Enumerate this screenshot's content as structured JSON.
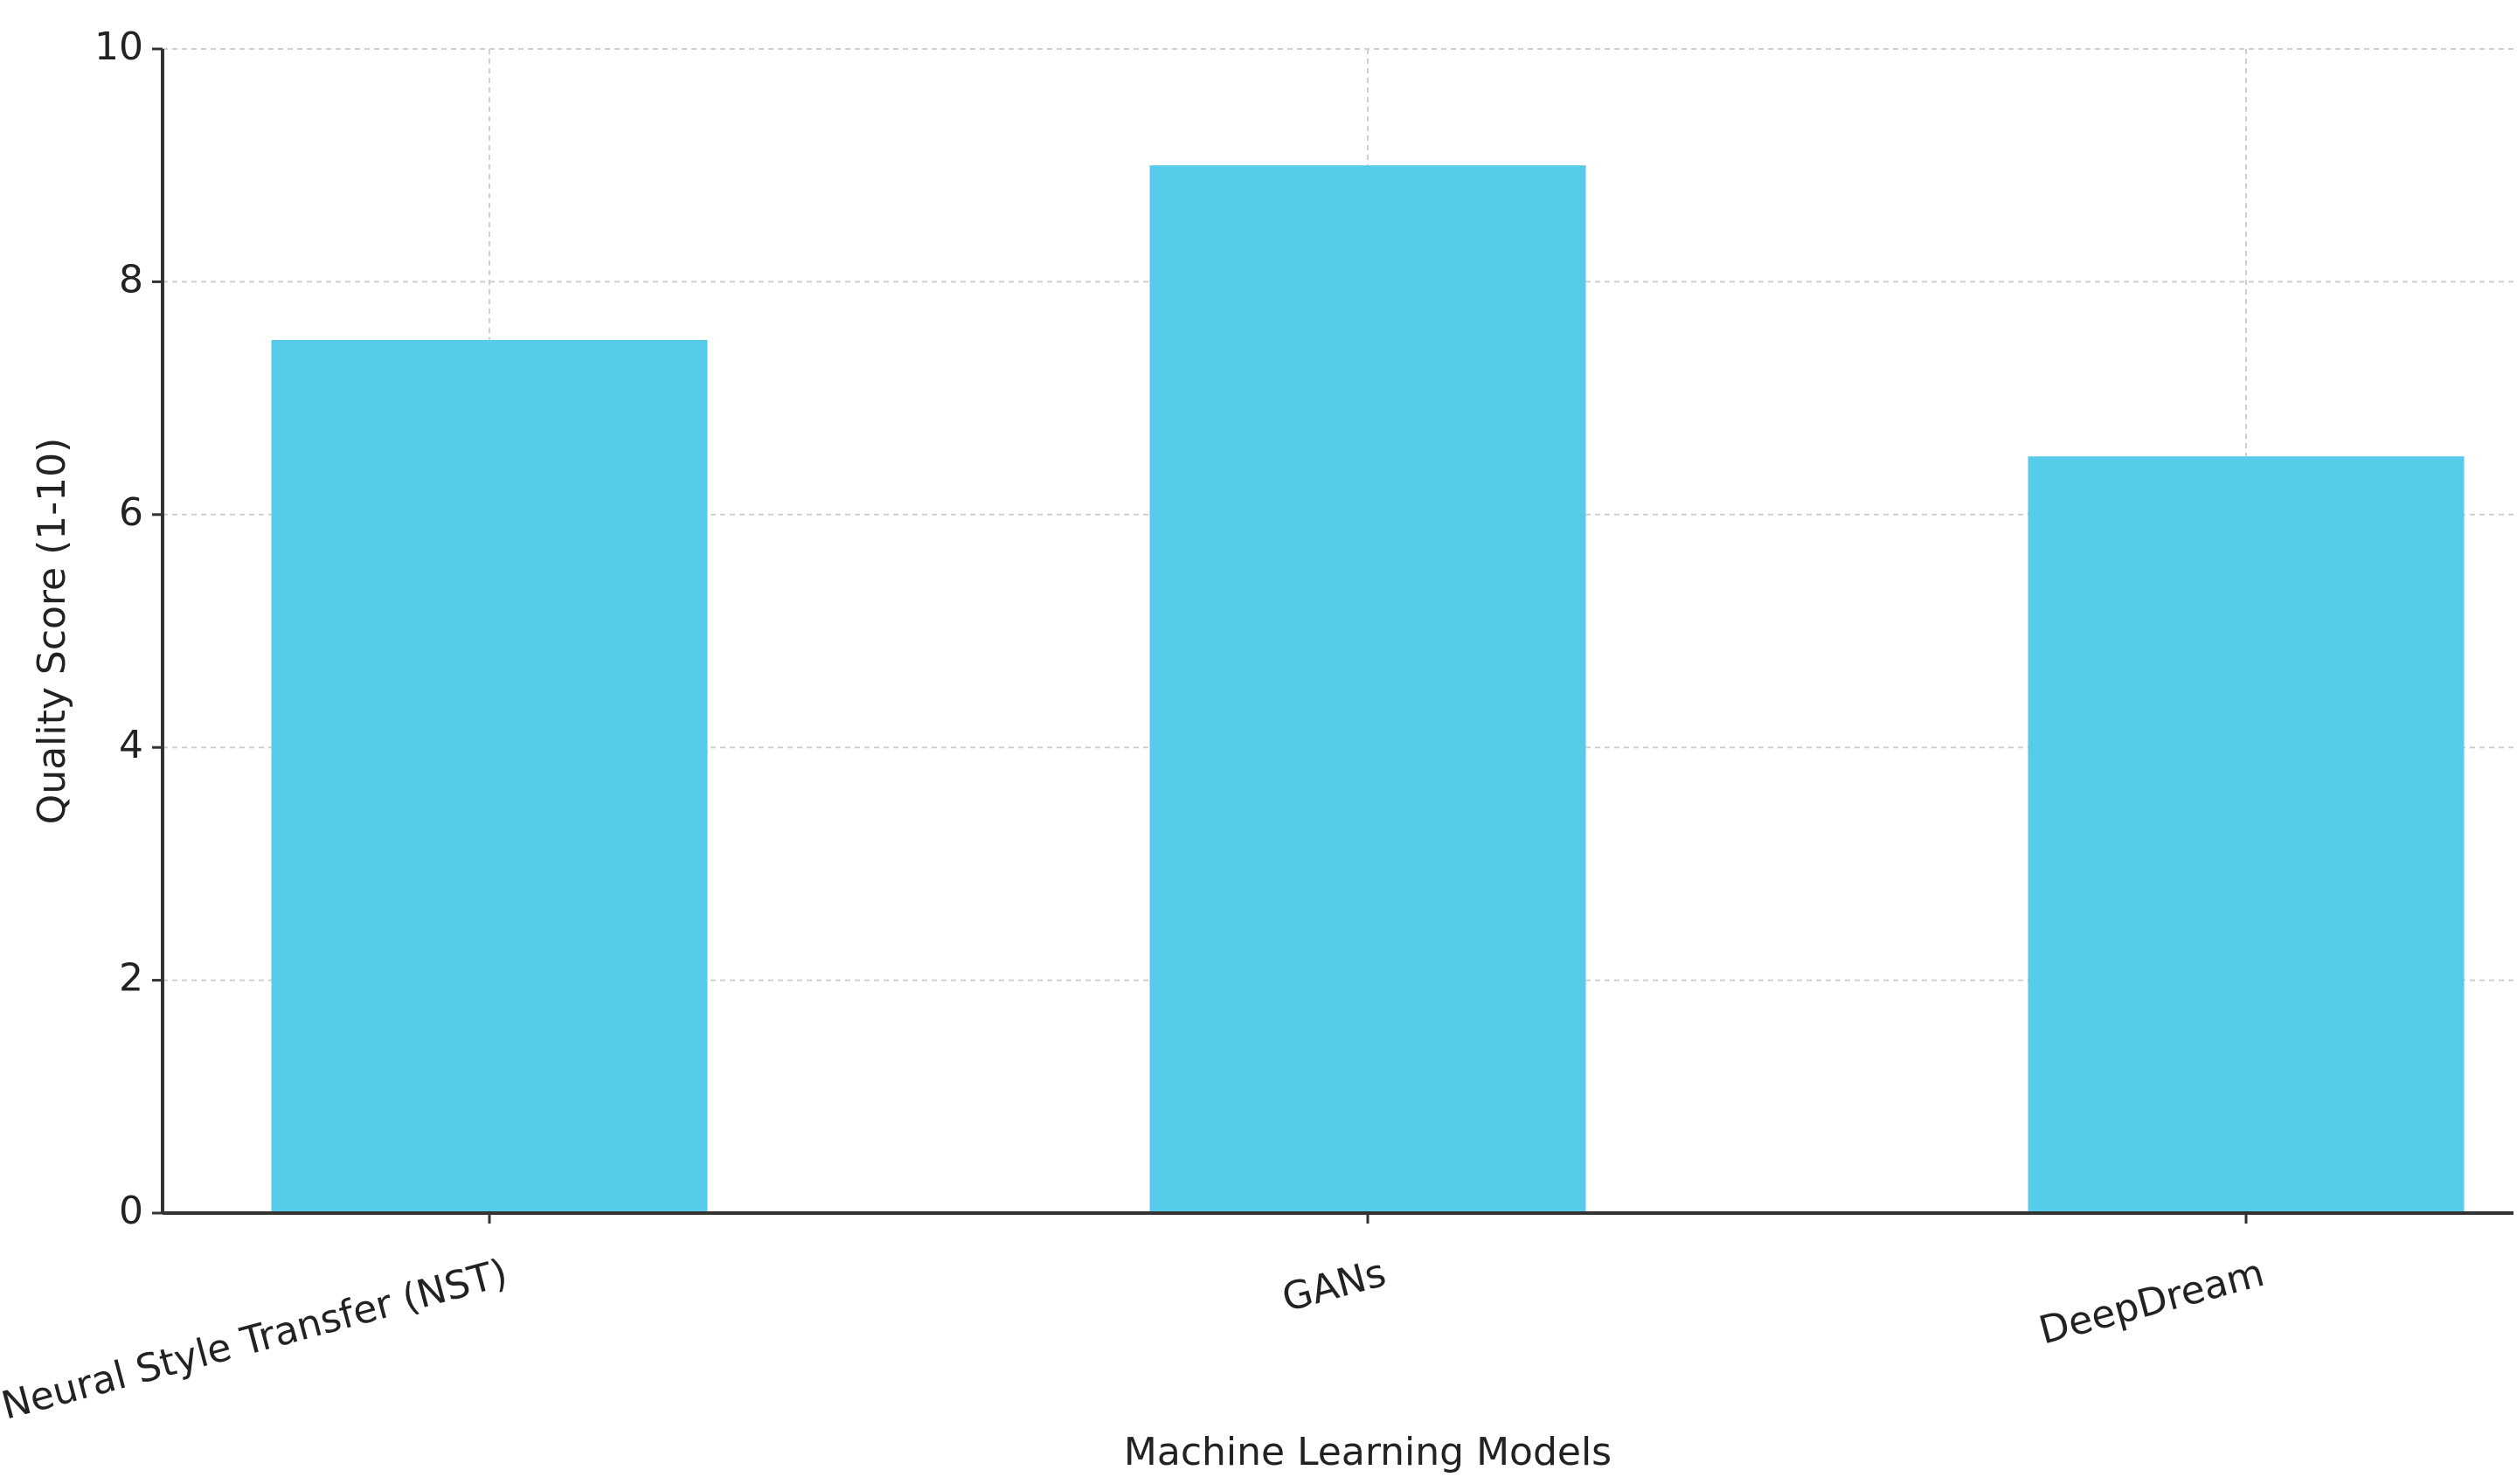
{
  "chart_data": {
    "type": "bar",
    "x_label": "Machine Learning Models",
    "y_label": "Quality Score (1-10)",
    "categories": [
      "Neural Style Transfer (NST)",
      "GANs",
      "DeepDream"
    ],
    "values": [
      7.5,
      9,
      6.5
    ],
    "color": "#56cbea",
    "ylim": [
      0,
      10
    ],
    "yticks": [
      0,
      2,
      4,
      6,
      8,
      10
    ],
    "grid": true
  }
}
